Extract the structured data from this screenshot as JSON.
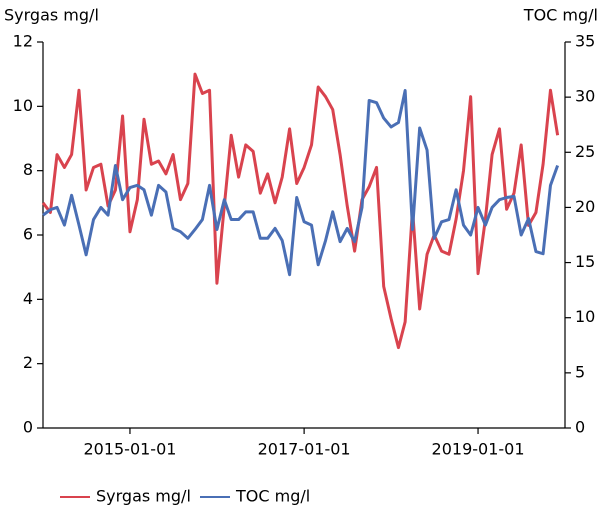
{
  "chart_data": {
    "type": "line",
    "y_label": "Syrgas mg/l",
    "y2_label": "TOC mg/l",
    "x": [
      "2014-01-01",
      "2014-02-01",
      "2014-03-01",
      "2014-04-01",
      "2014-05-01",
      "2014-06-01",
      "2014-07-01",
      "2014-08-01",
      "2014-09-01",
      "2014-10-01",
      "2014-11-01",
      "2014-12-01",
      "2015-01-01",
      "2015-02-01",
      "2015-03-01",
      "2015-04-01",
      "2015-05-01",
      "2015-06-01",
      "2015-07-01",
      "2015-08-01",
      "2015-09-01",
      "2015-10-01",
      "2015-11-01",
      "2015-12-01",
      "2016-01-01",
      "2016-02-01",
      "2016-03-01",
      "2016-04-01",
      "2016-05-01",
      "2016-06-01",
      "2016-07-01",
      "2016-08-01",
      "2016-09-01",
      "2016-10-01",
      "2016-11-01",
      "2016-12-01",
      "2017-01-01",
      "2017-02-01",
      "2017-03-01",
      "2017-04-01",
      "2017-05-01",
      "2017-06-01",
      "2017-07-01",
      "2017-08-01",
      "2017-09-01",
      "2017-10-01",
      "2017-11-01",
      "2017-12-01",
      "2018-01-01",
      "2018-02-01",
      "2018-03-01",
      "2018-04-01",
      "2018-05-01",
      "2018-06-01",
      "2018-07-01",
      "2018-08-01",
      "2018-09-01",
      "2018-10-01",
      "2018-11-01",
      "2018-12-01",
      "2019-01-01",
      "2019-02-01",
      "2019-03-01",
      "2019-04-01",
      "2019-05-01",
      "2019-06-01",
      "2019-07-01",
      "2019-08-01",
      "2019-09-01",
      "2019-10-01",
      "2019-11-01",
      "2019-12-01"
    ],
    "series": [
      {
        "name": "Syrgas mg/l",
        "color": "#d9434e",
        "axis": "y",
        "values": [
          7.0,
          6.7,
          8.5,
          8.1,
          8.5,
          10.5,
          7.4,
          8.1,
          8.2,
          6.9,
          7.4,
          9.7,
          6.1,
          7.1,
          9.6,
          8.2,
          8.3,
          7.9,
          8.5,
          7.1,
          7.6,
          11.0,
          10.4,
          10.5,
          4.5,
          6.9,
          9.1,
          7.8,
          8.8,
          8.6,
          7.3,
          7.9,
          7.0,
          7.8,
          9.3,
          7.6,
          8.1,
          8.8,
          10.6,
          10.3,
          9.9,
          8.5,
          6.9,
          5.5,
          7.1,
          7.5,
          8.1,
          4.4,
          3.4,
          2.5,
          3.3,
          6.8,
          3.7,
          5.4,
          6.0,
          5.5,
          5.4,
          6.5,
          8.0,
          10.3,
          4.8,
          6.5,
          8.5,
          9.3,
          6.8,
          7.3,
          8.8,
          6.3,
          6.7,
          8.2,
          10.5,
          9.1
        ]
      },
      {
        "name": "TOC mg/l",
        "color": "#4a6fb5",
        "axis": "y2",
        "values": [
          19.3,
          19.8,
          20.0,
          18.4,
          21.1,
          18.4,
          15.7,
          18.9,
          20.0,
          19.3,
          23.8,
          20.7,
          21.8,
          22.0,
          21.6,
          19.3,
          22.0,
          21.4,
          18.1,
          17.8,
          17.2,
          18.0,
          18.9,
          22.0,
          18.0,
          20.7,
          18.9,
          18.9,
          19.6,
          19.6,
          17.2,
          17.2,
          18.1,
          17.0,
          13.9,
          20.9,
          18.7,
          18.4,
          14.8,
          17.0,
          19.6,
          16.9,
          18.1,
          16.9,
          20.0,
          29.7,
          29.5,
          28.1,
          27.3,
          27.7,
          30.6,
          18.0,
          27.2,
          25.2,
          17.2,
          18.7,
          18.9,
          21.6,
          18.4,
          17.5,
          20.0,
          18.4,
          20.0,
          20.7,
          20.9,
          21.0,
          17.5,
          19.0,
          16.0,
          15.8,
          22.0,
          23.8
        ]
      }
    ],
    "xlim": [
      "2014-01-01",
      "2020-01-01"
    ],
    "xticks": [
      "2015-01-01",
      "2017-01-01",
      "2019-01-01"
    ],
    "ylim": [
      0,
      12
    ],
    "yticks": [
      0,
      2,
      4,
      6,
      8,
      10,
      12
    ],
    "y2lim": [
      0,
      35
    ],
    "y2ticks": [
      0,
      5,
      10,
      15,
      20,
      25,
      30,
      35
    ],
    "legend": "bottom"
  }
}
